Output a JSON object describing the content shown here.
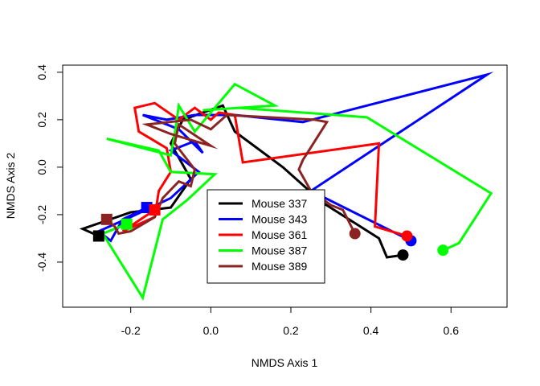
{
  "chart_data": {
    "type": "line",
    "title": "",
    "xlabel": "NMDS Axis 1",
    "ylabel": "NMDS Axis 2",
    "xlim": [
      -0.37,
      0.74
    ],
    "ylim": [
      -0.59,
      0.43
    ],
    "xticks": [
      -0.2,
      0.0,
      0.2,
      0.4,
      0.6
    ],
    "xtick_labels": [
      "-0.2",
      "0.0",
      "0.2",
      "0.4",
      "0.6"
    ],
    "yticks": [
      -0.4,
      -0.2,
      0.0,
      0.2,
      0.4
    ],
    "ytick_labels": [
      "-0.4",
      "-0.2",
      "0.0",
      "0.2",
      "0.4"
    ],
    "grid": false,
    "legend_position": "center",
    "start_marker": "square",
    "end_marker": "circle",
    "series": [
      {
        "name": "Mouse 337",
        "color": "#000000",
        "points": [
          [
            -0.28,
            -0.29
          ],
          [
            -0.32,
            -0.26
          ],
          [
            -0.2,
            -0.19
          ],
          [
            -0.1,
            -0.17
          ],
          [
            -0.05,
            -0.05
          ],
          [
            -0.1,
            0.1
          ],
          [
            -0.07,
            0.2
          ],
          [
            0.03,
            0.26
          ],
          [
            0.06,
            0.15
          ],
          [
            0.18,
            0.0
          ],
          [
            0.28,
            -0.15
          ],
          [
            0.42,
            -0.3
          ],
          [
            0.44,
            -0.38
          ],
          [
            0.48,
            -0.37
          ]
        ]
      },
      {
        "name": "Mouse 343",
        "color": "#0000ff",
        "points": [
          [
            -0.16,
            -0.17
          ],
          [
            -0.22,
            -0.22
          ],
          [
            -0.25,
            -0.31
          ],
          [
            -0.28,
            -0.27
          ],
          [
            -0.2,
            -0.21
          ],
          [
            -0.1,
            -0.13
          ],
          [
            -0.03,
            -0.02
          ],
          [
            -0.1,
            0.07
          ],
          [
            -0.04,
            0.11
          ],
          [
            -0.02,
            0.06
          ],
          [
            -0.08,
            0.16
          ],
          [
            -0.17,
            0.22
          ],
          [
            -0.11,
            0.2
          ],
          [
            -0.04,
            0.22
          ],
          [
            0.06,
            0.22
          ],
          [
            0.23,
            0.19
          ],
          [
            0.69,
            0.39
          ],
          [
            0.25,
            -0.1
          ],
          [
            0.5,
            -0.31
          ]
        ]
      },
      {
        "name": "Mouse 361",
        "color": "#ff0000",
        "points": [
          [
            -0.14,
            -0.18
          ],
          [
            -0.22,
            -0.27
          ],
          [
            -0.14,
            -0.21
          ],
          [
            -0.13,
            -0.1
          ],
          [
            -0.1,
            -0.02
          ],
          [
            -0.11,
            0.08
          ],
          [
            -0.18,
            0.15
          ],
          [
            -0.19,
            0.25
          ],
          [
            -0.14,
            0.27
          ],
          [
            -0.08,
            0.2
          ],
          [
            -0.04,
            0.25
          ],
          [
            0.0,
            0.2
          ],
          [
            0.02,
            0.23
          ],
          [
            0.06,
            0.22
          ],
          [
            0.08,
            0.02
          ],
          [
            0.42,
            0.1
          ],
          [
            0.41,
            -0.25
          ],
          [
            0.49,
            -0.29
          ]
        ]
      },
      {
        "name": "Mouse 387",
        "color": "#00ff00",
        "points": [
          [
            -0.21,
            -0.24
          ],
          [
            -0.27,
            -0.28
          ],
          [
            -0.17,
            -0.55
          ],
          [
            -0.12,
            -0.22
          ],
          [
            -0.06,
            -0.14
          ],
          [
            0.01,
            -0.03
          ],
          [
            -0.1,
            -0.02
          ],
          [
            -0.13,
            0.07
          ],
          [
            -0.26,
            0.12
          ],
          [
            -0.1,
            0.05
          ],
          [
            -0.09,
            0.14
          ],
          [
            -0.08,
            0.26
          ],
          [
            -0.04,
            0.15
          ],
          [
            0.06,
            0.35
          ],
          [
            0.16,
            0.26
          ],
          [
            -0.02,
            0.24
          ],
          [
            0.07,
            0.25
          ],
          [
            0.39,
            0.21
          ],
          [
            0.7,
            -0.11
          ],
          [
            0.62,
            -0.32
          ],
          [
            0.58,
            -0.35
          ]
        ]
      },
      {
        "name": "Mouse 389",
        "color": "#8b2323",
        "points": [
          [
            -0.26,
            -0.22
          ],
          [
            -0.24,
            -0.25
          ],
          [
            -0.23,
            -0.28
          ],
          [
            -0.2,
            -0.27
          ],
          [
            -0.14,
            -0.21
          ],
          [
            -0.12,
            -0.13
          ],
          [
            -0.08,
            -0.06
          ],
          [
            -0.05,
            -0.08
          ],
          [
            -0.04,
            -0.01
          ],
          [
            -0.09,
            0.1
          ],
          [
            -0.08,
            0.18
          ],
          [
            0.0,
            0.09
          ],
          [
            -0.1,
            0.14
          ],
          [
            -0.16,
            0.18
          ],
          [
            -0.05,
            0.2
          ],
          [
            0.0,
            0.16
          ],
          [
            0.04,
            0.22
          ],
          [
            0.26,
            0.2
          ],
          [
            0.29,
            0.19
          ],
          [
            0.23,
            0.03
          ],
          [
            0.22,
            -0.01
          ],
          [
            0.25,
            -0.1
          ],
          [
            0.3,
            -0.16
          ],
          [
            0.33,
            -0.18
          ],
          [
            0.36,
            -0.28
          ]
        ]
      }
    ]
  }
}
